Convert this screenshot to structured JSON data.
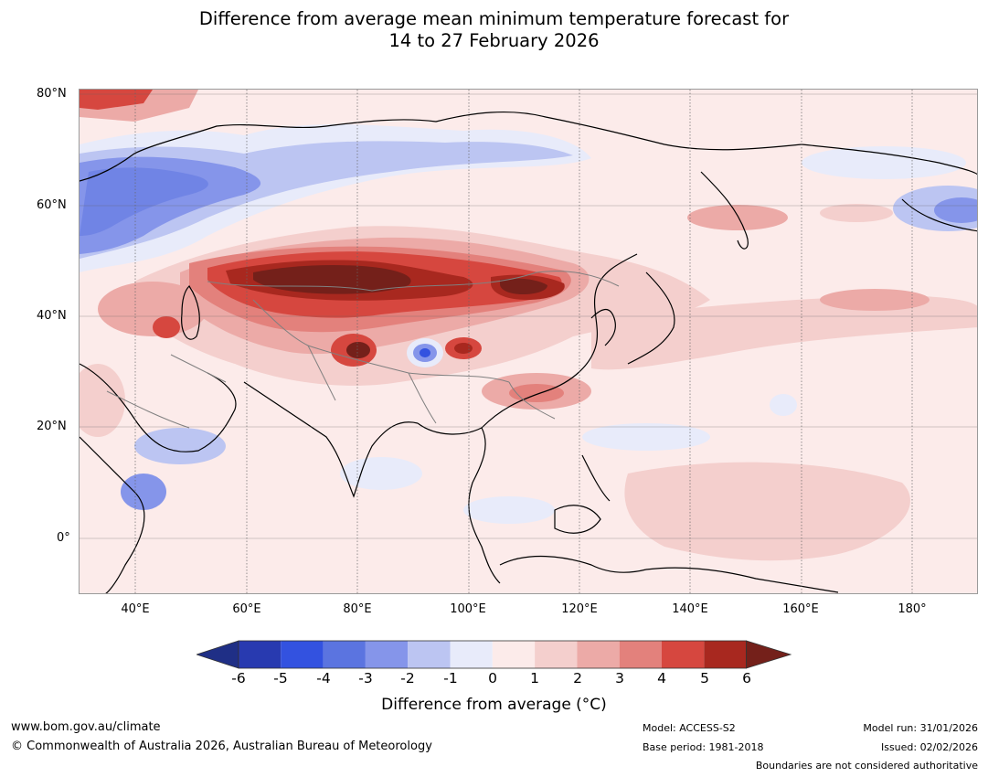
{
  "title": {
    "line1": "Difference from average mean minimum temperature forecast for",
    "line2": "14 to 27 February 2026"
  },
  "map": {
    "lat_labels": [
      "80°N",
      "60°N",
      "40°N",
      "20°N",
      "0°"
    ],
    "lon_labels": [
      "40°E",
      "60°E",
      "80°E",
      "100°E",
      "120°E",
      "140°E",
      "160°E",
      "180°"
    ],
    "features": {
      "cold_anomaly_region": "Northern Europe / Western Siberia",
      "warm_anomaly_region": "Central Asia / Mongolia / Northern China",
      "cold_spot": "Tibetan Plateau"
    }
  },
  "colorbar": {
    "labels": [
      "-6",
      "-5",
      "-4",
      "-3",
      "-2",
      "-1",
      "0",
      "1",
      "2",
      "3",
      "4",
      "5",
      "6"
    ],
    "colors": [
      "#1f2f86",
      "#283ab0",
      "#3352e0",
      "#5b74e0",
      "#8595ea",
      "#bcc5f2",
      "#e8ebfa",
      "#fcebea",
      "#f4cfcd",
      "#ecaaa7",
      "#e3817c",
      "#d6473f",
      "#a8281f",
      "#74201a"
    ],
    "title": "Difference from average (°C)"
  },
  "footer": {
    "website": "www.bom.gov.au/climate",
    "copyright": "© Commonwealth of Australia 2026, Australian Bureau of Meteorology",
    "model": "Model: ACCESS-S2",
    "base_period": "Base period: 1981-2018",
    "model_run": "Model run: 31/01/2026",
    "issued": "Issued: 02/02/2026",
    "disclaimer": "Boundaries are not considered authoritative"
  }
}
